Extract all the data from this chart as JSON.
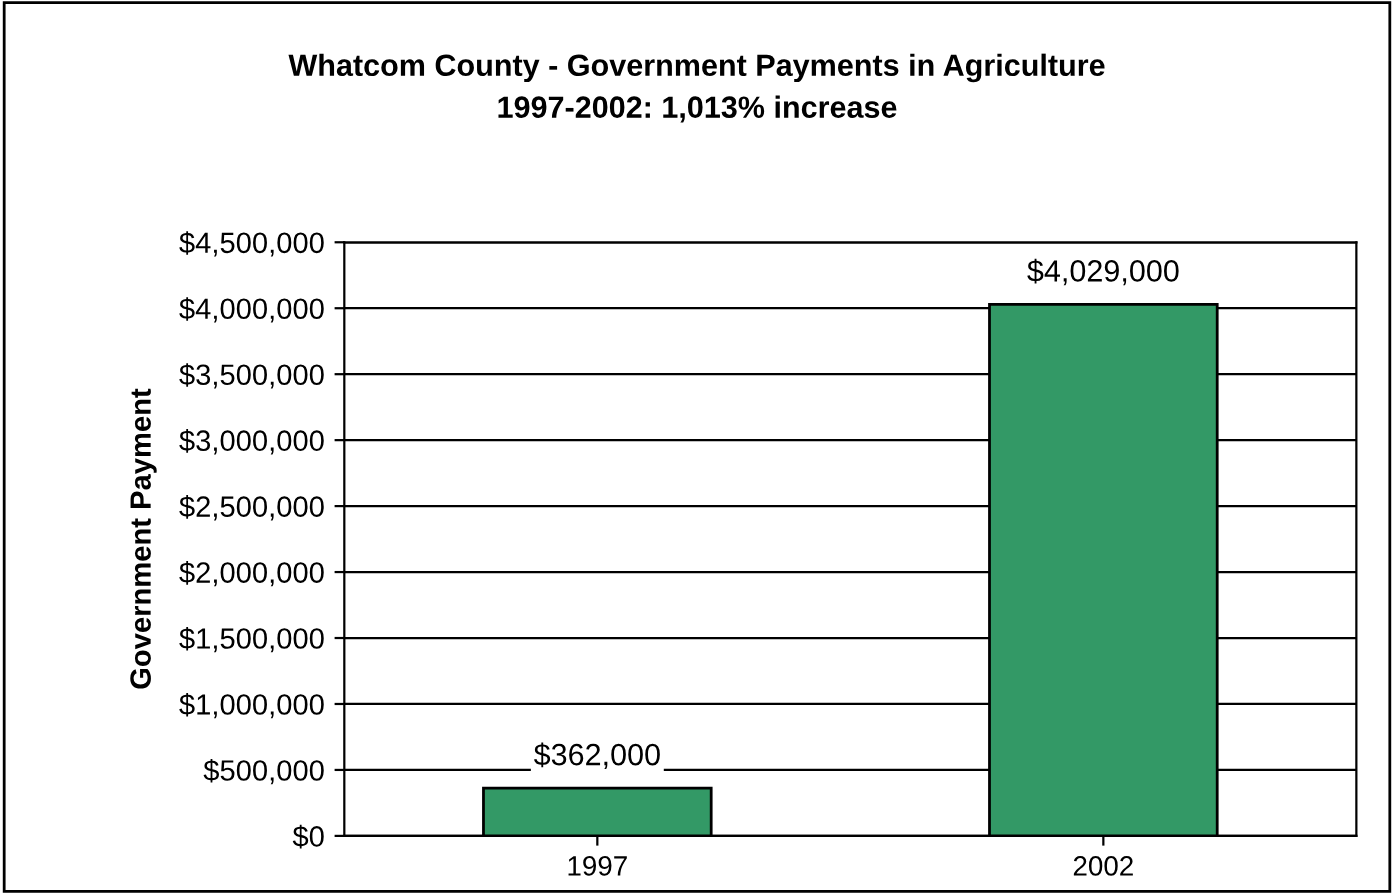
{
  "chart_data": {
    "type": "bar",
    "title": "Whatcom County - Government Payments in Agriculture\n1997-2002: 1,013% increase",
    "ylabel": "Government Payment",
    "categories": [
      "1997",
      "2002"
    ],
    "values": [
      362000,
      4029000
    ],
    "value_labels": [
      "$362,000",
      "$4,029,000"
    ],
    "color": "#339966",
    "ylim": [
      0,
      4500000
    ],
    "yticks": [
      {
        "value": 0,
        "label": "$0"
      },
      {
        "value": 500000,
        "label": "$500,000"
      },
      {
        "value": 1000000,
        "label": "$1,000,000"
      },
      {
        "value": 1500000,
        "label": "$1,500,000"
      },
      {
        "value": 2000000,
        "label": "$2,000,000"
      },
      {
        "value": 2500000,
        "label": "$2,500,000"
      },
      {
        "value": 3000000,
        "label": "$3,000,000"
      },
      {
        "value": 3500000,
        "label": "$3,500,000"
      },
      {
        "value": 4000000,
        "label": "$4,000,000"
      },
      {
        "value": 4500000,
        "label": "$4,500,000"
      }
    ],
    "grid": "y",
    "legend": false
  }
}
